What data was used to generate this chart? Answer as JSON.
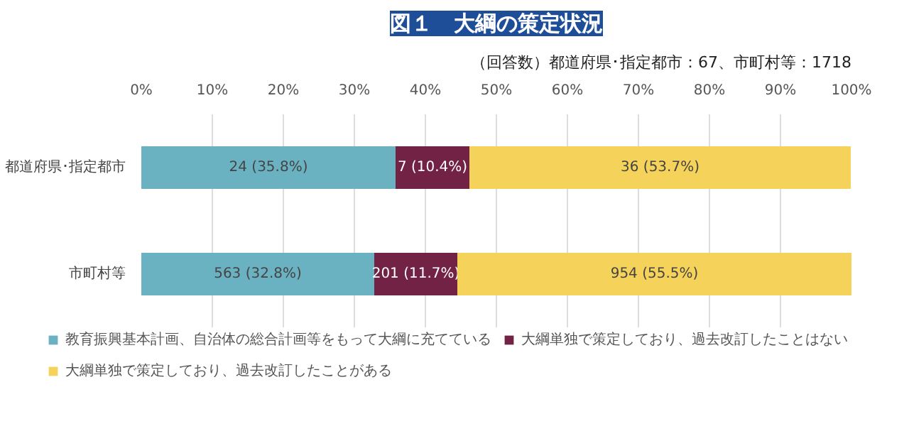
{
  "chart_data": {
    "type": "bar",
    "orientation": "horizontal",
    "stacked": true,
    "title": "図１　大綱の策定状況",
    "subtitle": "（回答数）都道府県･指定都市：67、市町村等：1718",
    "categories": [
      "都道府県･指定都市",
      "市町村等"
    ],
    "series": [
      {
        "name": "教育振興基本計画、自治体の総合計画等をもって大綱に充てている",
        "color": "#6ab2c2",
        "values": [
          35.8,
          32.8
        ],
        "value_labels": [
          "24 (35.8%)",
          "563 (32.8%)"
        ]
      },
      {
        "name": "大綱単独で策定しており、過去改訂したことはない",
        "color": "#722345",
        "values": [
          10.4,
          11.7
        ],
        "value_labels": [
          "7 (10.4%)",
          "201 (11.7%)"
        ]
      },
      {
        "name": "大綱単独で策定しており、過去改訂したことがある",
        "color": "#f5d25a",
        "values": [
          53.7,
          55.5
        ],
        "value_labels": [
          "36 (53.7%)",
          "954 (55.5%)"
        ]
      }
    ],
    "xlim": [
      0,
      100
    ],
    "xticks": [
      {
        "value": 0,
        "label": "0%"
      },
      {
        "value": 10,
        "label": "10%"
      },
      {
        "value": 20,
        "label": "20%"
      },
      {
        "value": 30,
        "label": "30%"
      },
      {
        "value": 40,
        "label": "40%"
      },
      {
        "value": 50,
        "label": "50%"
      },
      {
        "value": 60,
        "label": "60%"
      },
      {
        "value": 70,
        "label": "70%"
      },
      {
        "value": 80,
        "label": "80%"
      },
      {
        "value": 90,
        "label": "90%"
      },
      {
        "value": 100,
        "label": "100%"
      }
    ],
    "grid": "x",
    "legend": "bottom"
  }
}
